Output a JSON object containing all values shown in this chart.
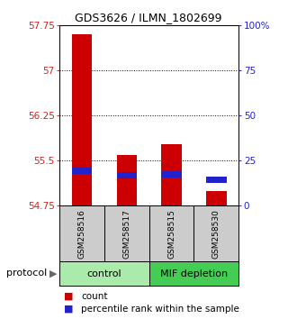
{
  "title": "GDS3626 / ILMN_1802699",
  "samples": [
    "GSM258516",
    "GSM258517",
    "GSM258515",
    "GSM258530"
  ],
  "y_min": 54.75,
  "y_max": 57.75,
  "y_ticks": [
    54.75,
    55.5,
    56.25,
    57,
    57.75
  ],
  "y_tick_labels": [
    "54.75",
    "55.5",
    "56.25",
    "57",
    "57.75"
  ],
  "right_y_ticks": [
    0,
    25,
    50,
    75,
    100
  ],
  "right_y_tick_labels": [
    "0",
    "25",
    "50",
    "75",
    "100%"
  ],
  "count_values": [
    57.6,
    55.6,
    55.78,
    55.0
  ],
  "percentile_values": [
    19.5,
    17.0,
    17.5,
    14.5
  ],
  "bar_bottom": 54.75,
  "red_color": "#CC0000",
  "blue_color": "#2222CC",
  "left_axis_color": "#CC2222",
  "right_axis_color": "#2222CC",
  "bar_width": 0.45,
  "bg_color": "#FFFFFF",
  "group_control_color": "#AAEAAA",
  "group_mif_color": "#44CC55",
  "gray_label_color": "#CCCCCC",
  "legend_count_label": "count",
  "legend_pct_label": "percentile rank within the sample",
  "control_samples": [
    0,
    1
  ],
  "mif_samples": [
    2,
    3
  ]
}
